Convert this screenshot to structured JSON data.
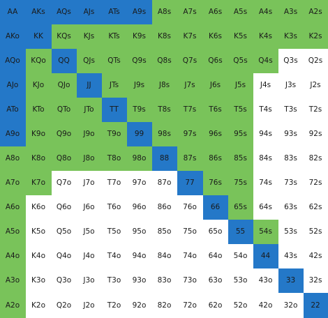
{
  "colors": {
    "blue": "#2478c8",
    "green": "#79c35a",
    "white": "#ffffff"
  },
  "rows": [
    [
      {
        "label": "AA",
        "state": "blue"
      },
      {
        "label": "AKs",
        "state": "blue"
      },
      {
        "label": "AQs",
        "state": "blue"
      },
      {
        "label": "AJs",
        "state": "blue"
      },
      {
        "label": "ATs",
        "state": "blue"
      },
      {
        "label": "A9s",
        "state": "blue"
      },
      {
        "label": "A8s",
        "state": "green"
      },
      {
        "label": "A7s",
        "state": "green"
      },
      {
        "label": "A6s",
        "state": "green"
      },
      {
        "label": "A5s",
        "state": "green"
      },
      {
        "label": "A4s",
        "state": "green"
      },
      {
        "label": "A3s",
        "state": "green"
      },
      {
        "label": "A2s",
        "state": "green"
      }
    ],
    [
      {
        "label": "AKo",
        "state": "blue"
      },
      {
        "label": "KK",
        "state": "blue"
      },
      {
        "label": "KQs",
        "state": "green"
      },
      {
        "label": "KJs",
        "state": "green"
      },
      {
        "label": "KTs",
        "state": "green"
      },
      {
        "label": "K9s",
        "state": "green"
      },
      {
        "label": "K8s",
        "state": "green"
      },
      {
        "label": "K7s",
        "state": "green"
      },
      {
        "label": "K6s",
        "state": "green"
      },
      {
        "label": "K5s",
        "state": "green"
      },
      {
        "label": "K4s",
        "state": "green"
      },
      {
        "label": "K3s",
        "state": "green"
      },
      {
        "label": "K2s",
        "state": "green"
      }
    ],
    [
      {
        "label": "AQo",
        "state": "blue"
      },
      {
        "label": "KQo",
        "state": "green"
      },
      {
        "label": "QQ",
        "state": "blue"
      },
      {
        "label": "QJs",
        "state": "green"
      },
      {
        "label": "QTs",
        "state": "green"
      },
      {
        "label": "Q9s",
        "state": "green"
      },
      {
        "label": "Q8s",
        "state": "green"
      },
      {
        "label": "Q7s",
        "state": "green"
      },
      {
        "label": "Q6s",
        "state": "green"
      },
      {
        "label": "Q5s",
        "state": "green"
      },
      {
        "label": "Q4s",
        "state": "green"
      },
      {
        "label": "Q3s",
        "state": "white"
      },
      {
        "label": "Q2s",
        "state": "white"
      }
    ],
    [
      {
        "label": "AJo",
        "state": "blue"
      },
      {
        "label": "KJo",
        "state": "green"
      },
      {
        "label": "QJo",
        "state": "green"
      },
      {
        "label": "JJ",
        "state": "blue"
      },
      {
        "label": "JTs",
        "state": "green"
      },
      {
        "label": "J9s",
        "state": "green"
      },
      {
        "label": "J8s",
        "state": "green"
      },
      {
        "label": "J7s",
        "state": "green"
      },
      {
        "label": "J6s",
        "state": "green"
      },
      {
        "label": "J5s",
        "state": "green"
      },
      {
        "label": "J4s",
        "state": "white"
      },
      {
        "label": "J3s",
        "state": "white"
      },
      {
        "label": "J2s",
        "state": "white"
      }
    ],
    [
      {
        "label": "ATo",
        "state": "blue"
      },
      {
        "label": "KTo",
        "state": "green"
      },
      {
        "label": "QTo",
        "state": "green"
      },
      {
        "label": "JTo",
        "state": "green"
      },
      {
        "label": "TT",
        "state": "blue"
      },
      {
        "label": "T9s",
        "state": "green"
      },
      {
        "label": "T8s",
        "state": "green"
      },
      {
        "label": "T7s",
        "state": "green"
      },
      {
        "label": "T6s",
        "state": "green"
      },
      {
        "label": "T5s",
        "state": "green"
      },
      {
        "label": "T4s",
        "state": "white"
      },
      {
        "label": "T3s",
        "state": "white"
      },
      {
        "label": "T2s",
        "state": "white"
      }
    ],
    [
      {
        "label": "A9o",
        "state": "blue"
      },
      {
        "label": "K9o",
        "state": "green"
      },
      {
        "label": "Q9o",
        "state": "green"
      },
      {
        "label": "J9o",
        "state": "green"
      },
      {
        "label": "T9o",
        "state": "green"
      },
      {
        "label": "99",
        "state": "blue"
      },
      {
        "label": "98s",
        "state": "green"
      },
      {
        "label": "97s",
        "state": "green"
      },
      {
        "label": "96s",
        "state": "green"
      },
      {
        "label": "95s",
        "state": "green"
      },
      {
        "label": "94s",
        "state": "white"
      },
      {
        "label": "93s",
        "state": "white"
      },
      {
        "label": "92s",
        "state": "white"
      }
    ],
    [
      {
        "label": "A8o",
        "state": "green"
      },
      {
        "label": "K8o",
        "state": "green"
      },
      {
        "label": "Q8o",
        "state": "green"
      },
      {
        "label": "J8o",
        "state": "green"
      },
      {
        "label": "T8o",
        "state": "green"
      },
      {
        "label": "98o",
        "state": "green"
      },
      {
        "label": "88",
        "state": "blue"
      },
      {
        "label": "87s",
        "state": "green"
      },
      {
        "label": "86s",
        "state": "green"
      },
      {
        "label": "85s",
        "state": "green"
      },
      {
        "label": "84s",
        "state": "white"
      },
      {
        "label": "83s",
        "state": "white"
      },
      {
        "label": "82s",
        "state": "white"
      }
    ],
    [
      {
        "label": "A7o",
        "state": "green"
      },
      {
        "label": "K7o",
        "state": "green"
      },
      {
        "label": "Q7o",
        "state": "white"
      },
      {
        "label": "J7o",
        "state": "white"
      },
      {
        "label": "T7o",
        "state": "white"
      },
      {
        "label": "97o",
        "state": "white"
      },
      {
        "label": "87o",
        "state": "white"
      },
      {
        "label": "77",
        "state": "blue"
      },
      {
        "label": "76s",
        "state": "green"
      },
      {
        "label": "75s",
        "state": "green"
      },
      {
        "label": "74s",
        "state": "white"
      },
      {
        "label": "73s",
        "state": "white"
      },
      {
        "label": "72s",
        "state": "white"
      }
    ],
    [
      {
        "label": "A6o",
        "state": "green"
      },
      {
        "label": "K6o",
        "state": "white"
      },
      {
        "label": "Q6o",
        "state": "white"
      },
      {
        "label": "J6o",
        "state": "white"
      },
      {
        "label": "T6o",
        "state": "white"
      },
      {
        "label": "96o",
        "state": "white"
      },
      {
        "label": "86o",
        "state": "white"
      },
      {
        "label": "76o",
        "state": "white"
      },
      {
        "label": "66",
        "state": "blue"
      },
      {
        "label": "65s",
        "state": "green"
      },
      {
        "label": "64s",
        "state": "white"
      },
      {
        "label": "63s",
        "state": "white"
      },
      {
        "label": "62s",
        "state": "white"
      }
    ],
    [
      {
        "label": "A5o",
        "state": "green"
      },
      {
        "label": "K5o",
        "state": "white"
      },
      {
        "label": "Q5o",
        "state": "white"
      },
      {
        "label": "J5o",
        "state": "white"
      },
      {
        "label": "T5o",
        "state": "white"
      },
      {
        "label": "95o",
        "state": "white"
      },
      {
        "label": "85o",
        "state": "white"
      },
      {
        "label": "75o",
        "state": "white"
      },
      {
        "label": "65o",
        "state": "white"
      },
      {
        "label": "55",
        "state": "blue"
      },
      {
        "label": "54s",
        "state": "green"
      },
      {
        "label": "53s",
        "state": "white"
      },
      {
        "label": "52s",
        "state": "white"
      }
    ],
    [
      {
        "label": "A4o",
        "state": "green"
      },
      {
        "label": "K4o",
        "state": "white"
      },
      {
        "label": "Q4o",
        "state": "white"
      },
      {
        "label": "J4o",
        "state": "white"
      },
      {
        "label": "T4o",
        "state": "white"
      },
      {
        "label": "94o",
        "state": "white"
      },
      {
        "label": "84o",
        "state": "white"
      },
      {
        "label": "74o",
        "state": "white"
      },
      {
        "label": "64o",
        "state": "white"
      },
      {
        "label": "54o",
        "state": "white"
      },
      {
        "label": "44",
        "state": "blue"
      },
      {
        "label": "43s",
        "state": "white"
      },
      {
        "label": "42s",
        "state": "white"
      }
    ],
    [
      {
        "label": "A3o",
        "state": "green"
      },
      {
        "label": "K3o",
        "state": "white"
      },
      {
        "label": "Q3o",
        "state": "white"
      },
      {
        "label": "J3o",
        "state": "white"
      },
      {
        "label": "T3o",
        "state": "white"
      },
      {
        "label": "93o",
        "state": "white"
      },
      {
        "label": "83o",
        "state": "white"
      },
      {
        "label": "73o",
        "state": "white"
      },
      {
        "label": "63o",
        "state": "white"
      },
      {
        "label": "53o",
        "state": "white"
      },
      {
        "label": "43o",
        "state": "white"
      },
      {
        "label": "33",
        "state": "blue"
      },
      {
        "label": "32s",
        "state": "white"
      }
    ],
    [
      {
        "label": "A2o",
        "state": "green"
      },
      {
        "label": "K2o",
        "state": "white"
      },
      {
        "label": "Q2o",
        "state": "white"
      },
      {
        "label": "J2o",
        "state": "white"
      },
      {
        "label": "T2o",
        "state": "white"
      },
      {
        "label": "92o",
        "state": "white"
      },
      {
        "label": "82o",
        "state": "white"
      },
      {
        "label": "72o",
        "state": "white"
      },
      {
        "label": "62o",
        "state": "white"
      },
      {
        "label": "52o",
        "state": "white"
      },
      {
        "label": "42o",
        "state": "white"
      },
      {
        "label": "32o",
        "state": "white"
      },
      {
        "label": "22",
        "state": "blue"
      }
    ]
  ]
}
